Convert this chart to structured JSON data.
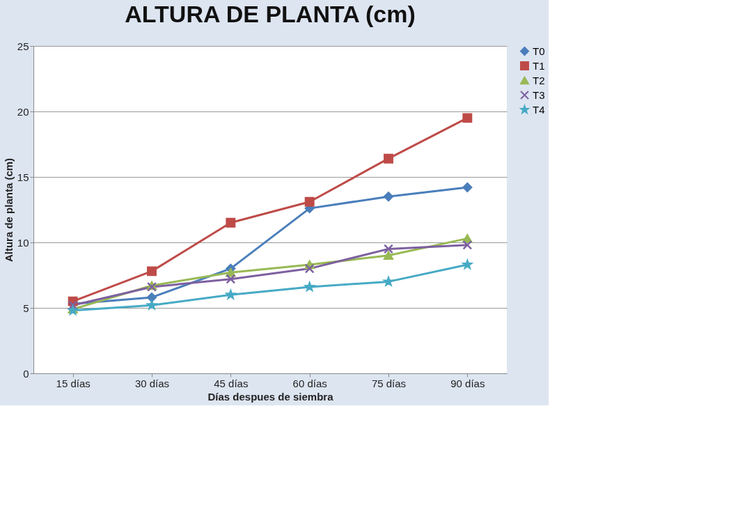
{
  "chart_data": {
    "type": "line",
    "title": "ALTURA DE PLANTA (cm)",
    "xlabel": "Días despues de siembra",
    "ylabel": "Altura de planta (cm)",
    "categories": [
      "15 días",
      "30 días",
      "45 días",
      "60 días",
      "75 días",
      "90 días"
    ],
    "ylim": [
      0,
      25
    ],
    "yticks": [
      0,
      5,
      10,
      15,
      20,
      25
    ],
    "grid": "y",
    "legend": "right",
    "line_style": "solid",
    "series": [
      {
        "name": "T0",
        "color": "#4a7ebb",
        "marker": "diamond",
        "values": [
          5.3,
          5.8,
          8.0,
          12.6,
          13.5,
          14.2
        ]
      },
      {
        "name": "T1",
        "color": "#be4b48",
        "marker": "square",
        "values": [
          5.5,
          7.8,
          11.5,
          13.1,
          16.4,
          19.5
        ]
      },
      {
        "name": "T2",
        "color": "#98b954",
        "marker": "triangle",
        "values": [
          4.9,
          6.7,
          7.7,
          8.3,
          9.0,
          10.3
        ]
      },
      {
        "name": "T3",
        "color": "#7d60a0",
        "marker": "cross",
        "values": [
          5.2,
          6.6,
          7.2,
          8.0,
          9.5,
          9.8
        ]
      },
      {
        "name": "T4",
        "color": "#46aac5",
        "marker": "star",
        "values": [
          4.8,
          5.2,
          6.0,
          6.6,
          7.0,
          8.3
        ]
      }
    ]
  }
}
